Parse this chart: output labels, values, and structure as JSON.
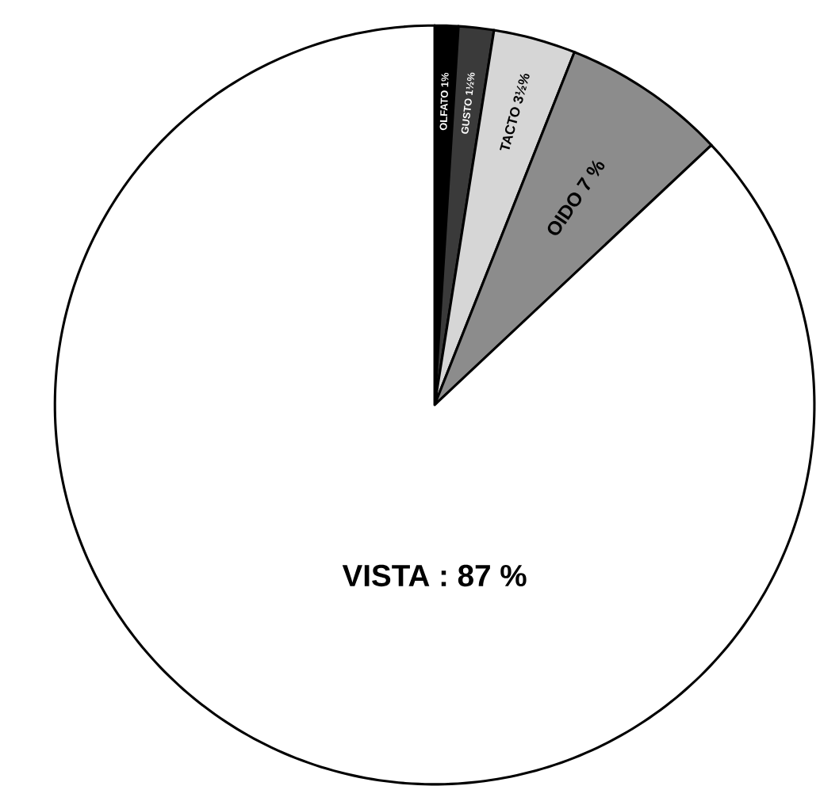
{
  "chart_data": {
    "type": "pie",
    "categories": [
      "OLFATO",
      "GUSTO",
      "TACTO",
      "OIDO",
      "VISTA"
    ],
    "values": [
      1,
      1.5,
      3.5,
      7,
      87
    ],
    "value_labels": [
      "1%",
      "1½%",
      "3½%",
      "7 %",
      ": 87 %"
    ],
    "colors": [
      "#000000",
      "#3a3a3a",
      "#d6d6d6",
      "#8c8c8c",
      "#ffffff"
    ]
  }
}
